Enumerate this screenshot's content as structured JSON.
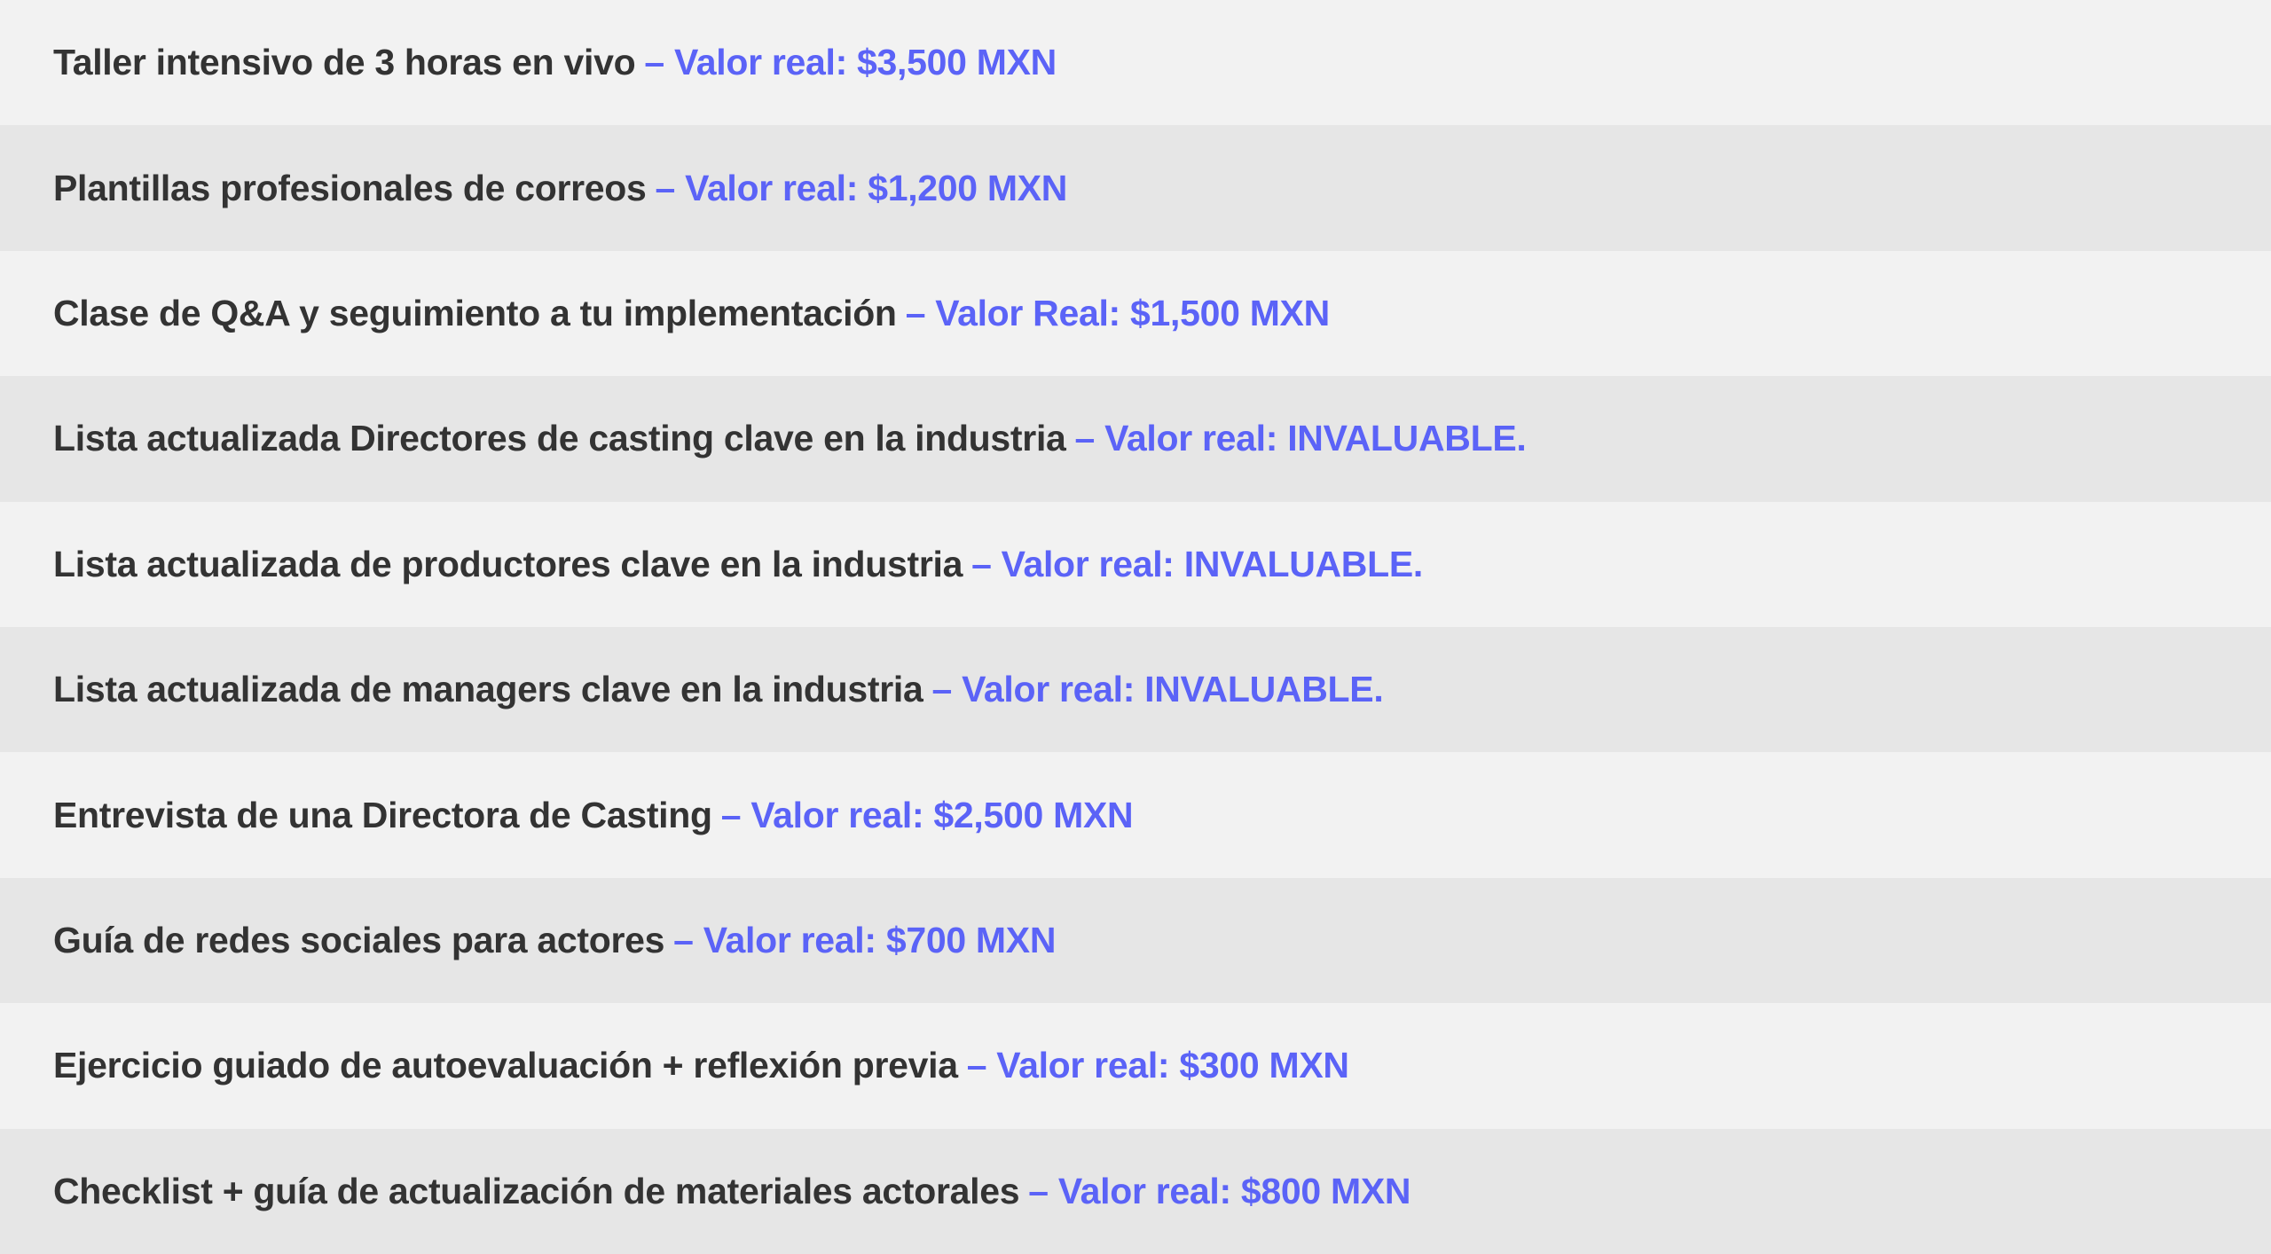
{
  "colors": {
    "text": "#333333",
    "accent": "#5b63f7",
    "row_light": "#f2f2f2",
    "row_dark": "#e6e6e6"
  },
  "items": [
    {
      "label": "Taller intensivo de 3 horas en vivo",
      "value": "– Valor real: $3,500 MXN"
    },
    {
      "label": "Plantillas profesionales de correos",
      "value": "– Valor real: $1,200 MXN"
    },
    {
      "label": "Clase de Q&A y seguimiento a tu implementación",
      "value": "– Valor Real: $1,500 MXN"
    },
    {
      "label": "Lista actualizada Directores de casting clave en la industria",
      "value": "– Valor real: INVALUABLE."
    },
    {
      "label": "Lista actualizada de productores clave en la industria",
      "value": "– Valor real: INVALUABLE."
    },
    {
      "label": "Lista actualizada de managers clave en la industria",
      "value": "– Valor real: INVALUABLE."
    },
    {
      "label": "Entrevista de una Directora de Casting",
      "value": "– Valor real: $2,500 MXN"
    },
    {
      "label": "Guía de redes sociales para actores",
      "value": "– Valor real: $700 MXN"
    },
    {
      "label": "Ejercicio guiado de autoevaluación + reflexión previa",
      "value": "– Valor real: $300 MXN"
    },
    {
      "label": "Checklist + guía de actualización de materiales actorales",
      "value": "– Valor real: $800 MXN"
    }
  ]
}
